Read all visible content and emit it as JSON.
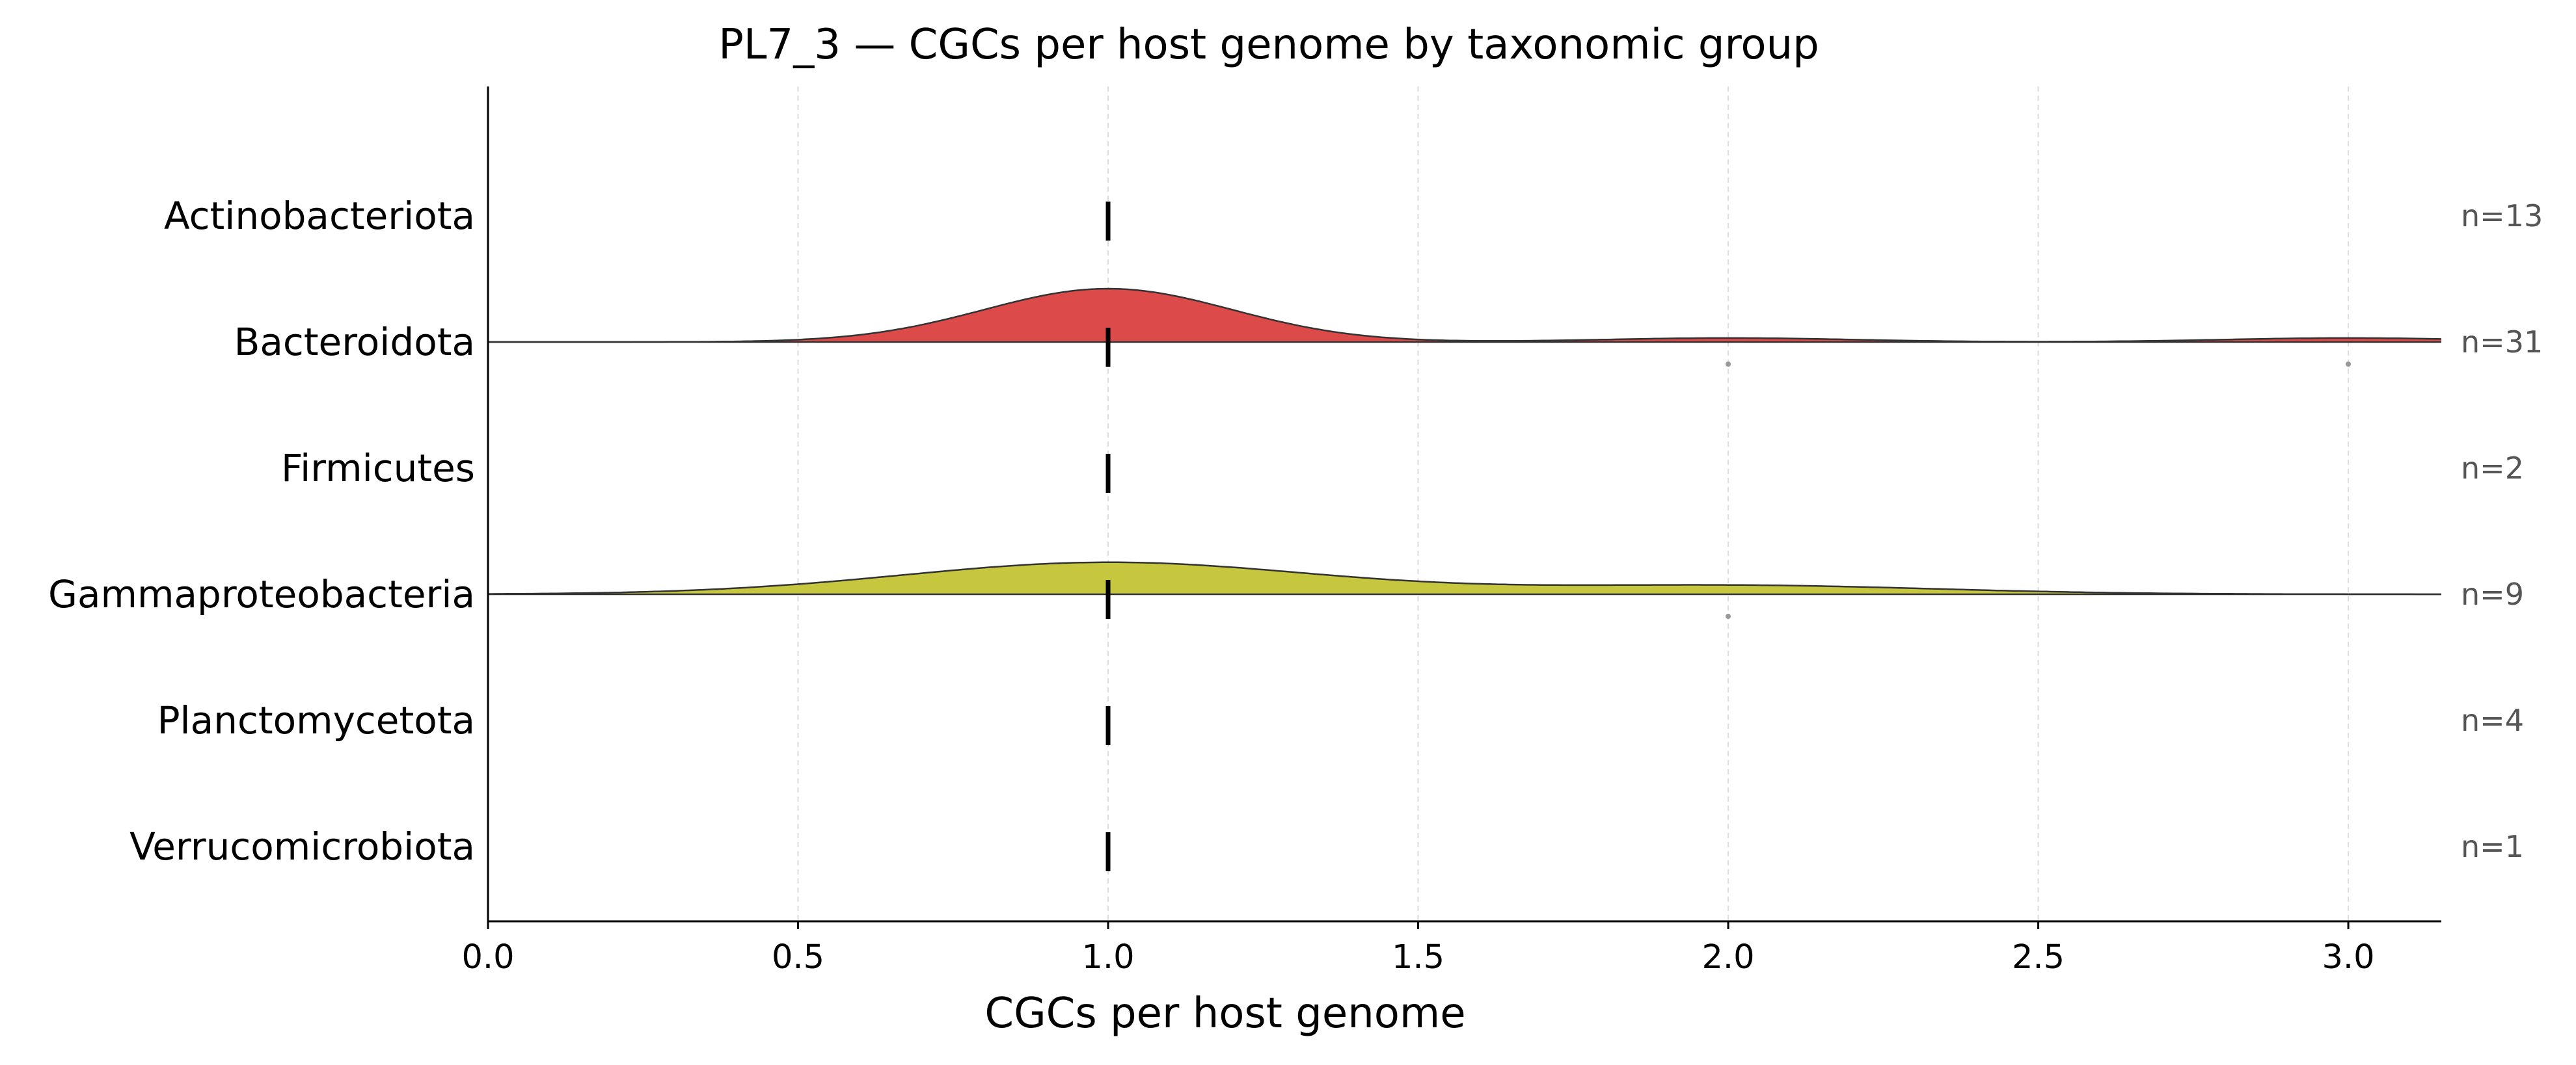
{
  "chart_data": {
    "type": "ridgeline",
    "title": "PL7_3 — CGCs per host genome by taxonomic group",
    "xlabel": "CGCs per host genome",
    "ylabel": "",
    "xlim": [
      0.0,
      3.15
    ],
    "x_ticks": [
      0.0,
      0.5,
      1.0,
      1.5,
      2.0,
      2.5,
      3.0
    ],
    "x_tick_labels": [
      "0.0",
      "0.5",
      "1.0",
      "1.5",
      "2.0",
      "2.5",
      "3.0"
    ],
    "grid": "vertical dashed",
    "groups": [
      {
        "name": "Actinobacteriota",
        "count_label": "n=13",
        "n": 13,
        "median": 1.0,
        "density": null,
        "outliers": []
      },
      {
        "name": "Bacteroidota",
        "count_label": "n=31",
        "n": 31,
        "median": 1.0,
        "color": "#dc4a4a",
        "density": {
          "components": [
            {
              "mean": 1.0,
              "sd": 0.2,
              "weight": 0.87
            },
            {
              "mean": 2.0,
              "sd": 0.2,
              "weight": 0.065
            },
            {
              "mean": 3.0,
              "sd": 0.2,
              "weight": 0.065
            }
          ],
          "peak_height": 1.0
        },
        "outliers": [
          2.0,
          3.0
        ]
      },
      {
        "name": "Firmicutes",
        "count_label": "n=2",
        "n": 2,
        "median": 1.0,
        "density": null,
        "outliers": []
      },
      {
        "name": "Gammaproteobacteria",
        "count_label": "n=9",
        "n": 9,
        "median": 1.0,
        "color": "#c6c63f",
        "density": {
          "components": [
            {
              "mean": 1.0,
              "sd": 0.33,
              "weight": 0.78
            },
            {
              "mean": 2.0,
              "sd": 0.33,
              "weight": 0.22
            }
          ],
          "peak_height": 0.6
        },
        "outliers": [
          2.0
        ]
      },
      {
        "name": "Planctomycetota",
        "count_label": "n=4",
        "n": 4,
        "median": 1.0,
        "density": null,
        "outliers": []
      },
      {
        "name": "Verrucomicrobiota",
        "count_label": "n=1",
        "n": 1,
        "median": 1.0,
        "density": null,
        "outliers": []
      }
    ]
  }
}
